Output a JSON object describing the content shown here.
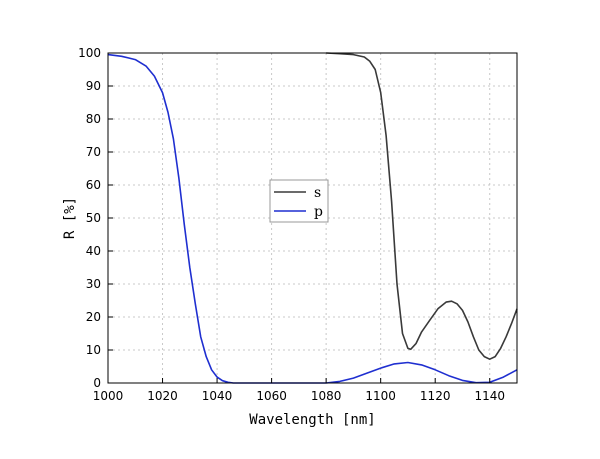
{
  "chart_data": {
    "type": "line",
    "title": "",
    "xlabel": "Wavelength [nm]",
    "ylabel": "R [%]",
    "xlim": [
      1000,
      1150
    ],
    "ylim": [
      0,
      100
    ],
    "xticks": [
      1000,
      1020,
      1040,
      1060,
      1080,
      1100,
      1120,
      1140
    ],
    "yticks": [
      0,
      10,
      20,
      30,
      40,
      50,
      60,
      70,
      80,
      90,
      100
    ],
    "grid": true,
    "legend_position": "center",
    "series": [
      {
        "name": "s",
        "color": "#3a3a3a",
        "points": [
          [
            1080,
            100
          ],
          [
            1085,
            99.8
          ],
          [
            1090,
            99.5
          ],
          [
            1094,
            98.8
          ],
          [
            1096,
            97.5
          ],
          [
            1098,
            95
          ],
          [
            1100,
            88
          ],
          [
            1102,
            75
          ],
          [
            1104,
            55
          ],
          [
            1106,
            30
          ],
          [
            1108,
            15
          ],
          [
            1110,
            10.5
          ],
          [
            1111,
            10.2
          ],
          [
            1113,
            12
          ],
          [
            1115,
            15.5
          ],
          [
            1118,
            19
          ],
          [
            1121,
            22.5
          ],
          [
            1124,
            24.5
          ],
          [
            1126,
            24.8
          ],
          [
            1128,
            24
          ],
          [
            1130,
            22
          ],
          [
            1132,
            18.5
          ],
          [
            1134,
            14
          ],
          [
            1136,
            10
          ],
          [
            1138,
            8
          ],
          [
            1140,
            7.2
          ],
          [
            1142,
            8
          ],
          [
            1144,
            10.5
          ],
          [
            1146,
            14
          ],
          [
            1148,
            18
          ],
          [
            1150,
            22.5
          ]
        ]
      },
      {
        "name": "p",
        "color": "#1f2fd0",
        "points": [
          [
            1000,
            99.5
          ],
          [
            1005,
            99
          ],
          [
            1010,
            98
          ],
          [
            1014,
            96
          ],
          [
            1017,
            93
          ],
          [
            1020,
            88
          ],
          [
            1022,
            82
          ],
          [
            1024,
            74
          ],
          [
            1026,
            62
          ],
          [
            1028,
            48
          ],
          [
            1030,
            35
          ],
          [
            1032,
            24
          ],
          [
            1034,
            14
          ],
          [
            1036,
            8
          ],
          [
            1038,
            4
          ],
          [
            1040,
            1.8
          ],
          [
            1042,
            0.7
          ],
          [
            1044,
            0.2
          ],
          [
            1046,
            0
          ],
          [
            1080,
            0
          ],
          [
            1085,
            0.5
          ],
          [
            1090,
            1.5
          ],
          [
            1095,
            3
          ],
          [
            1100,
            4.5
          ],
          [
            1105,
            5.8
          ],
          [
            1110,
            6.2
          ],
          [
            1115,
            5.5
          ],
          [
            1120,
            4
          ],
          [
            1125,
            2.2
          ],
          [
            1130,
            0.8
          ],
          [
            1135,
            0.1
          ],
          [
            1140,
            0.2
          ],
          [
            1145,
            1.8
          ],
          [
            1150,
            4
          ]
        ]
      }
    ]
  }
}
